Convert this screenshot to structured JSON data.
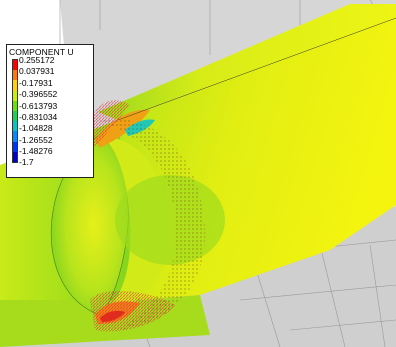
{
  "legend": {
    "title": "COMPONENT U",
    "values": [
      "0.255172",
      "0.037931",
      "-0.17931",
      "-0.396552",
      "-0.613793",
      "-0.831034",
      "-1.04828",
      "-1.26552",
      "-1.48276",
      "-1.7"
    ],
    "colors": [
      "#ff0000",
      "#ff7a00",
      "#ffd200",
      "#c8f000",
      "#6ee000",
      "#1ad25a",
      "#00c8c8",
      "#008cff",
      "#0032ff",
      "#0000c8"
    ]
  },
  "palette": {
    "background": "#ffffff",
    "ground_light": "#d4d4d4",
    "ground_dark": "#b6b6b6",
    "flow_yellow": "#e8ef10",
    "flow_green": "#8edc1e",
    "vector_red": "#e0303a"
  }
}
